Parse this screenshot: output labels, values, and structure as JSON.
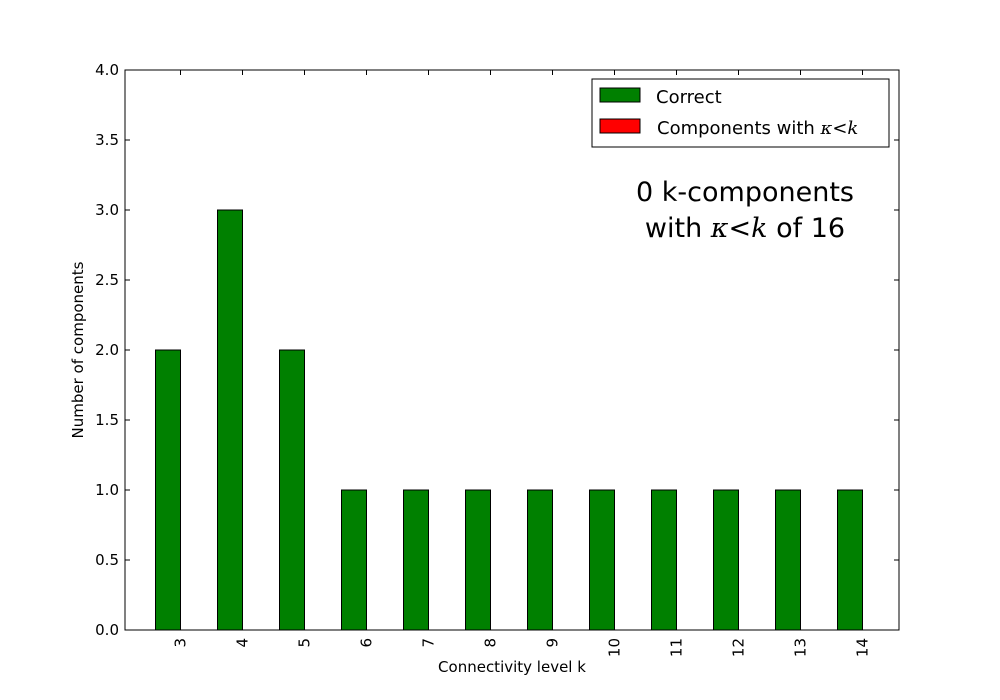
{
  "chart_data": {
    "type": "bar",
    "title": "",
    "xlabel": "Connectivity level k",
    "ylabel": "Number of components",
    "ylim": [
      0,
      4.0
    ],
    "yticks": [
      "0.0",
      "0.5",
      "1.0",
      "1.5",
      "2.0",
      "2.5",
      "3.0",
      "3.5",
      "4.0"
    ],
    "categories": [
      "3",
      "4",
      "5",
      "6",
      "7",
      "8",
      "9",
      "10",
      "11",
      "12",
      "13",
      "14"
    ],
    "series": [
      {
        "name": "Correct",
        "color": "#008000",
        "values": [
          2,
          3,
          2,
          1,
          1,
          1,
          1,
          1,
          1,
          1,
          1,
          1
        ]
      },
      {
        "name": "Components with κ<k",
        "color": "#ff0000",
        "values": [
          0,
          0,
          0,
          0,
          0,
          0,
          0,
          0,
          0,
          0,
          0,
          0
        ]
      }
    ],
    "legend": {
      "placement": "top-right",
      "correct_label": "Correct",
      "incorrect_prefix": "Components with ",
      "kappa": "κ",
      "lt": "<",
      "k": "k"
    },
    "annotation": {
      "line1": "0 k-components",
      "line2_prefix": "with ",
      "kappa": "κ",
      "lt": "<",
      "k": "k",
      "line2_suffix": " of 16"
    },
    "grid": false
  }
}
